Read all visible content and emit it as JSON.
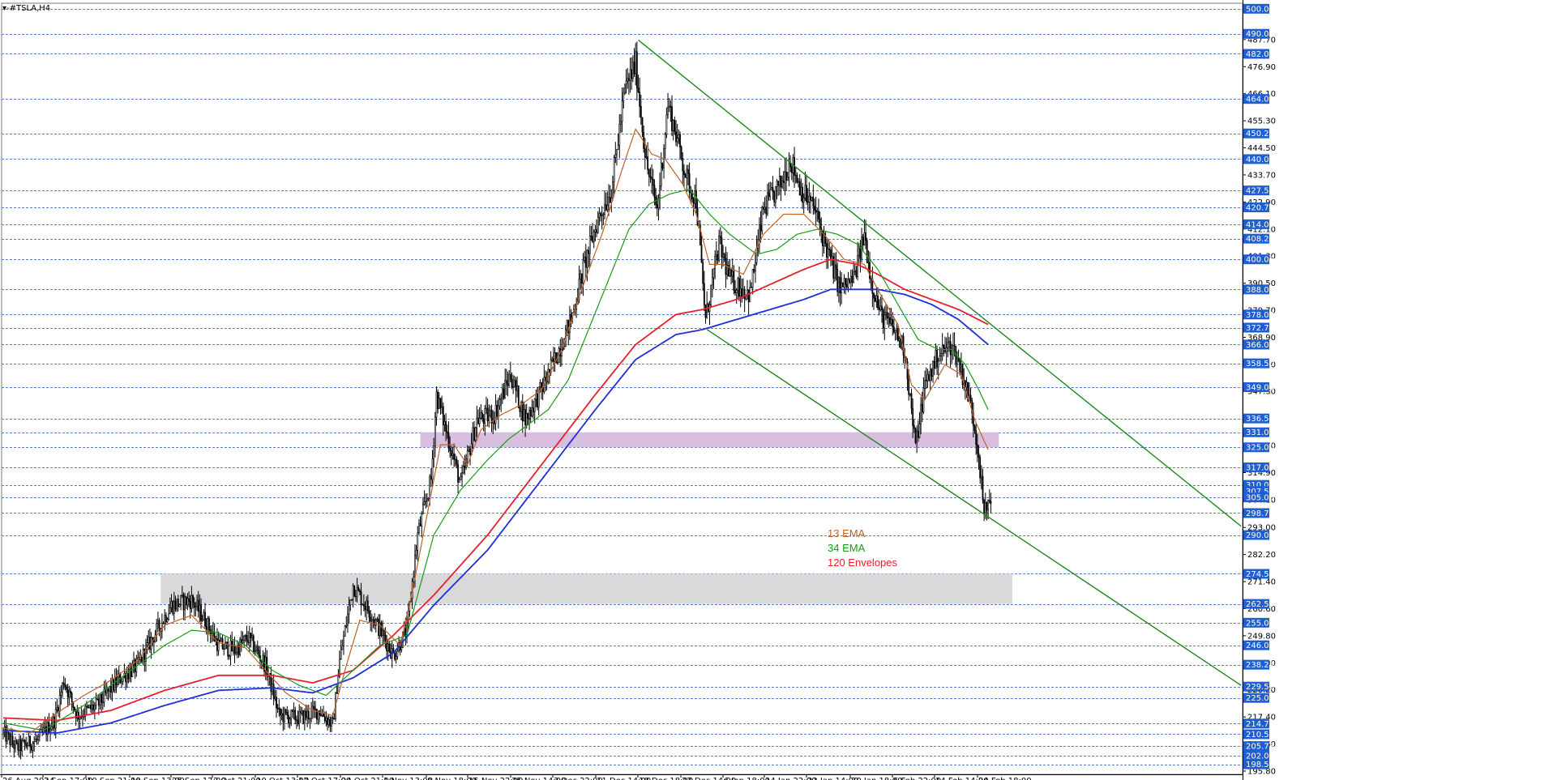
{
  "window": {
    "title": "▾-#TSLA,H4"
  },
  "colors": {
    "grid": "#5b7fc4",
    "tag_bg": "#1f5fd1",
    "candle": "#000000",
    "ema13": "#c0622a",
    "ema34": "#1a9a1a",
    "env_upper": "#e8202c",
    "env_lower": "#1f2ed6",
    "trend": "#1a8a1a",
    "zone_upper": "#d8bfe0",
    "zone_lower": "#d9d9d9"
  },
  "chart_data": {
    "type": "candlestick",
    "symbol": "#TSLA",
    "timeframe": "H4",
    "ylim": [
      195.0,
      500.0
    ],
    "x_ticks": [
      "26 Aug 2024",
      "3 Sep 17:00",
      "10 Sep 21:00",
      "18 Sep 13:00",
      "25 Sep 17:00",
      "2 Oct 21:00",
      "10 Oct 13:00",
      "17 Oct 17:00",
      "24 Oct 21:00",
      "1 Nov 13:00",
      "8 Nov 18:00",
      "15 Nov 22:00",
      "25 Nov 14:00",
      "3 Dec 22:00",
      "11 Dec 14:00",
      "18 Dec 18:00",
      "27 Dec 14:00",
      "6 Jan 18:00",
      "14 Jan 22:00",
      "23 Jan 14:00",
      "30 Jan 18:00",
      "6 Feb 22:00",
      "14 Feb 14:00",
      "24 Feb 18:00"
    ],
    "grid_levels": [
      500.0,
      490.0,
      482.0,
      464.0,
      450.25,
      440.0,
      427.5,
      420.75,
      414.0,
      408.25,
      400.0,
      388.0,
      378.0,
      372.75,
      366.0,
      358.5,
      349.0,
      336.5,
      331.0,
      325.0,
      317.0,
      310.0,
      305.0,
      298.75,
      290.0,
      274.5,
      262.5,
      255.0,
      246.0,
      238.25,
      229.5,
      225.0,
      214.75,
      210.5,
      205.75,
      202.0,
      198.5
    ],
    "axis_labels": [
      {
        "v": 500.0,
        "t": "500.00",
        "tag": true
      },
      {
        "v": 490.0,
        "t": "490.00",
        "tag": true
      },
      {
        "v": 487.7,
        "t": "487.70",
        "tag": false
      },
      {
        "v": 482.0,
        "t": "482.00",
        "tag": true
      },
      {
        "v": 476.9,
        "t": "476.90",
        "tag": false
      },
      {
        "v": 466.1,
        "t": "466.10",
        "tag": false
      },
      {
        "v": 464.0,
        "t": "464.00",
        "tag": true
      },
      {
        "v": 455.3,
        "t": "455.30",
        "tag": false
      },
      {
        "v": 450.25,
        "t": "450.25",
        "tag": true
      },
      {
        "v": 444.5,
        "t": "444.50",
        "tag": false
      },
      {
        "v": 440.0,
        "t": "440.00",
        "tag": true
      },
      {
        "v": 433.7,
        "t": "433.70",
        "tag": false
      },
      {
        "v": 427.5,
        "t": "427.50",
        "tag": true
      },
      {
        "v": 422.9,
        "t": "422.90",
        "tag": false
      },
      {
        "v": 420.75,
        "t": "420.75",
        "tag": true
      },
      {
        "v": 414.0,
        "t": "414.00",
        "tag": true
      },
      {
        "v": 412.1,
        "t": "412.10",
        "tag": false
      },
      {
        "v": 408.25,
        "t": "408.25",
        "tag": true
      },
      {
        "v": 401.3,
        "t": "401.30",
        "tag": false
      },
      {
        "v": 400.0,
        "t": "400.00",
        "tag": true
      },
      {
        "v": 390.5,
        "t": "390.50",
        "tag": false
      },
      {
        "v": 388.0,
        "t": "388.00",
        "tag": true
      },
      {
        "v": 379.7,
        "t": "379.70",
        "tag": false
      },
      {
        "v": 378.0,
        "t": "378.00",
        "tag": true
      },
      {
        "v": 372.75,
        "t": "372.75",
        "tag": true
      },
      {
        "v": 368.9,
        "t": "368.90",
        "tag": false
      },
      {
        "v": 366.0,
        "t": "366.00",
        "tag": true
      },
      {
        "v": 358.5,
        "t": "358.50",
        "tag": true
      },
      {
        "v": 358.1,
        "t": "358.10",
        "tag": false
      },
      {
        "v": 349.0,
        "t": "349.00",
        "tag": true
      },
      {
        "v": 347.3,
        "t": "347.30",
        "tag": false
      },
      {
        "v": 336.5,
        "t": "336.50",
        "tag": true
      },
      {
        "v": 331.0,
        "t": "331.00",
        "tag": true
      },
      {
        "v": 325.7,
        "t": "325.70",
        "tag": false
      },
      {
        "v": 325.0,
        "t": "325.00",
        "tag": true
      },
      {
        "v": 317.0,
        "t": "317.00",
        "tag": true
      },
      {
        "v": 314.9,
        "t": "314.90",
        "tag": false
      },
      {
        "v": 310.0,
        "t": "310.00",
        "tag": true
      },
      {
        "v": 307.54,
        "t": "307.54",
        "tag": true
      },
      {
        "v": 304.1,
        "t": "304.10",
        "tag": false
      },
      {
        "v": 305.0,
        "t": "305.00",
        "tag": true
      },
      {
        "v": 298.75,
        "t": "298.75",
        "tag": true
      },
      {
        "v": 293.0,
        "t": "293.00",
        "tag": false
      },
      {
        "v": 290.0,
        "t": "290.00",
        "tag": true
      },
      {
        "v": 282.2,
        "t": "282.20",
        "tag": false
      },
      {
        "v": 274.5,
        "t": "274.50",
        "tag": true
      },
      {
        "v": 271.4,
        "t": "271.40",
        "tag": false
      },
      {
        "v": 262.5,
        "t": "262.50",
        "tag": true
      },
      {
        "v": 260.6,
        "t": "260.60",
        "tag": false
      },
      {
        "v": 255.0,
        "t": "255.00",
        "tag": true
      },
      {
        "v": 249.8,
        "t": "249.80",
        "tag": false
      },
      {
        "v": 246.0,
        "t": "246.00",
        "tag": true
      },
      {
        "v": 239.0,
        "t": "239.00",
        "tag": false
      },
      {
        "v": 238.25,
        "t": "238.25",
        "tag": true
      },
      {
        "v": 229.5,
        "t": "229.50",
        "tag": true
      },
      {
        "v": 228.2,
        "t": "228.20",
        "tag": false
      },
      {
        "v": 225.0,
        "t": "225.00",
        "tag": true
      },
      {
        "v": 217.4,
        "t": "217.40",
        "tag": false
      },
      {
        "v": 214.75,
        "t": "214.75",
        "tag": true
      },
      {
        "v": 210.5,
        "t": "210.50",
        "tag": true
      },
      {
        "v": 206.6,
        "t": "206.60",
        "tag": false
      },
      {
        "v": 205.75,
        "t": "205.75",
        "tag": true
      },
      {
        "v": 202.0,
        "t": "202.00",
        "tag": true
      },
      {
        "v": 198.5,
        "t": "198.50",
        "tag": true
      },
      {
        "v": 195.8,
        "t": "195.80",
        "tag": false
      }
    ],
    "legend": [
      "13 EMA",
      "34 EMA",
      "120 Envelopes"
    ],
    "zones": [
      {
        "name": "supply-zone",
        "from": 325.0,
        "to": 331.0,
        "x_from_bar": 310,
        "x_to_bar": 740
      },
      {
        "name": "support-zone",
        "from": 262.5,
        "to": 274.5,
        "x_from_bar": 117,
        "x_to_bar": 750
      }
    ],
    "trendlines": [
      {
        "name": "upper-trendline",
        "from": {
          "bar": 472,
          "price": 487.5
        },
        "to": {
          "bar": 920,
          "price": 293.5
        }
      },
      {
        "name": "lower-trendline",
        "from": {
          "bar": 523,
          "price": 372.0
        },
        "to": {
          "bar": 920,
          "price": 230.0
        }
      }
    ],
    "bar_count": 735,
    "series_anchors": {
      "price": [
        [
          0,
          211
        ],
        [
          10,
          205
        ],
        [
          25,
          208
        ],
        [
          38,
          216
        ],
        [
          45,
          232
        ],
        [
          55,
          218
        ],
        [
          70,
          222
        ],
        [
          85,
          232
        ],
        [
          100,
          238
        ],
        [
          110,
          248
        ],
        [
          125,
          262
        ],
        [
          140,
          264
        ],
        [
          150,
          256
        ],
        [
          160,
          246
        ],
        [
          172,
          244
        ],
        [
          182,
          249
        ],
        [
          195,
          238
        ],
        [
          205,
          218
        ],
        [
          220,
          217
        ],
        [
          235,
          220
        ],
        [
          245,
          214
        ],
        [
          250,
          240
        ],
        [
          260,
          270
        ],
        [
          275,
          257
        ],
        [
          290,
          242
        ],
        [
          300,
          252
        ],
        [
          308,
          290
        ],
        [
          318,
          312
        ],
        [
          322,
          346
        ],
        [
          330,
          330
        ],
        [
          340,
          310
        ],
        [
          352,
          336
        ],
        [
          365,
          338
        ],
        [
          377,
          354
        ],
        [
          388,
          336
        ],
        [
          400,
          348
        ],
        [
          410,
          360
        ],
        [
          422,
          376
        ],
        [
          432,
          398
        ],
        [
          442,
          416
        ],
        [
          452,
          428
        ],
        [
          462,
          468
        ],
        [
          470,
          478
        ],
        [
          478,
          438
        ],
        [
          486,
          420
        ],
        [
          494,
          462
        ],
        [
          500,
          450
        ],
        [
          508,
          432
        ],
        [
          515,
          424
        ],
        [
          522,
          376
        ],
        [
          532,
          406
        ],
        [
          540,
          392
        ],
        [
          555,
          386
        ],
        [
          565,
          420
        ],
        [
          578,
          430
        ],
        [
          585,
          440
        ],
        [
          593,
          428
        ],
        [
          603,
          420
        ],
        [
          612,
          404
        ],
        [
          622,
          388
        ],
        [
          632,
          392
        ],
        [
          640,
          410
        ],
        [
          645,
          392
        ],
        [
          652,
          378
        ],
        [
          662,
          372
        ],
        [
          670,
          364
        ],
        [
          678,
          325
        ],
        [
          685,
          350
        ],
        [
          695,
          362
        ],
        [
          705,
          366
        ],
        [
          712,
          356
        ],
        [
          720,
          340
        ],
        [
          725,
          322
        ],
        [
          729,
          298
        ],
        [
          734,
          306
        ]
      ],
      "ema13": [
        [
          0,
          213
        ],
        [
          20,
          211
        ],
        [
          40,
          219
        ],
        [
          60,
          226
        ],
        [
          80,
          232
        ],
        [
          100,
          240
        ],
        [
          120,
          254
        ],
        [
          140,
          258
        ],
        [
          160,
          247
        ],
        [
          180,
          245
        ],
        [
          195,
          236
        ],
        [
          210,
          227
        ],
        [
          230,
          220
        ],
        [
          245,
          218
        ],
        [
          255,
          238
        ],
        [
          265,
          256
        ],
        [
          280,
          254
        ],
        [
          295,
          246
        ],
        [
          305,
          270
        ],
        [
          315,
          298
        ],
        [
          325,
          326
        ],
        [
          335,
          326
        ],
        [
          345,
          318
        ],
        [
          355,
          332
        ],
        [
          370,
          338
        ],
        [
          385,
          342
        ],
        [
          400,
          348
        ],
        [
          415,
          364
        ],
        [
          430,
          388
        ],
        [
          445,
          410
        ],
        [
          460,
          436
        ],
        [
          470,
          452
        ],
        [
          482,
          442
        ],
        [
          492,
          440
        ],
        [
          505,
          430
        ],
        [
          515,
          418
        ],
        [
          525,
          398
        ],
        [
          535,
          398
        ],
        [
          550,
          394
        ],
        [
          565,
          410
        ],
        [
          580,
          418
        ],
        [
          595,
          418
        ],
        [
          610,
          410
        ],
        [
          625,
          400
        ],
        [
          640,
          398
        ],
        [
          652,
          386
        ],
        [
          665,
          374
        ],
        [
          675,
          350
        ],
        [
          685,
          344
        ],
        [
          700,
          358
        ],
        [
          712,
          354
        ],
        [
          722,
          336
        ],
        [
          732,
          324
        ]
      ],
      "ema34": [
        [
          0,
          215
        ],
        [
          30,
          212
        ],
        [
          60,
          222
        ],
        [
          90,
          234
        ],
        [
          120,
          246
        ],
        [
          140,
          252
        ],
        [
          160,
          251
        ],
        [
          180,
          246
        ],
        [
          200,
          236
        ],
        [
          220,
          230
        ],
        [
          240,
          226
        ],
        [
          260,
          236
        ],
        [
          280,
          246
        ],
        [
          300,
          250
        ],
        [
          320,
          290
        ],
        [
          340,
          308
        ],
        [
          360,
          320
        ],
        [
          375,
          328
        ],
        [
          390,
          334
        ],
        [
          405,
          340
        ],
        [
          420,
          352
        ],
        [
          435,
          372
        ],
        [
          450,
          392
        ],
        [
          465,
          412
        ],
        [
          480,
          422
        ],
        [
          495,
          426
        ],
        [
          510,
          428
        ],
        [
          525,
          418
        ],
        [
          540,
          410
        ],
        [
          560,
          402
        ],
        [
          575,
          404
        ],
        [
          590,
          410
        ],
        [
          605,
          412
        ],
        [
          620,
          410
        ],
        [
          635,
          406
        ],
        [
          650,
          396
        ],
        [
          665,
          382
        ],
        [
          680,
          368
        ],
        [
          695,
          364
        ],
        [
          705,
          364
        ],
        [
          715,
          358
        ],
        [
          725,
          348
        ],
        [
          732,
          340
        ]
      ],
      "env_upper": [
        [
          0,
          217
        ],
        [
          40,
          216
        ],
        [
          80,
          220
        ],
        [
          120,
          228
        ],
        [
          160,
          234
        ],
        [
          200,
          234
        ],
        [
          230,
          231
        ],
        [
          260,
          236
        ],
        [
          290,
          250
        ],
        [
          320,
          266
        ],
        [
          360,
          290
        ],
        [
          400,
          318
        ],
        [
          440,
          346
        ],
        [
          470,
          366
        ],
        [
          500,
          378
        ],
        [
          520,
          380
        ],
        [
          545,
          384
        ],
        [
          570,
          390
        ],
        [
          595,
          396
        ],
        [
          615,
          400
        ],
        [
          635,
          398
        ],
        [
          650,
          394
        ],
        [
          670,
          388
        ],
        [
          690,
          384
        ],
        [
          710,
          380
        ],
        [
          732,
          374
        ]
      ],
      "env_lower": [
        [
          0,
          212
        ],
        [
          40,
          211
        ],
        [
          80,
          215
        ],
        [
          120,
          222
        ],
        [
          160,
          228
        ],
        [
          200,
          229
        ],
        [
          230,
          227
        ],
        [
          260,
          233
        ],
        [
          290,
          243
        ],
        [
          320,
          262
        ],
        [
          360,
          284
        ],
        [
          400,
          312
        ],
        [
          440,
          340
        ],
        [
          470,
          360
        ],
        [
          500,
          370
        ],
        [
          520,
          372
        ],
        [
          545,
          376
        ],
        [
          570,
          380
        ],
        [
          595,
          384
        ],
        [
          615,
          388
        ],
        [
          635,
          388
        ],
        [
          650,
          388
        ],
        [
          670,
          386
        ],
        [
          690,
          382
        ],
        [
          710,
          376
        ],
        [
          732,
          366
        ]
      ]
    }
  }
}
